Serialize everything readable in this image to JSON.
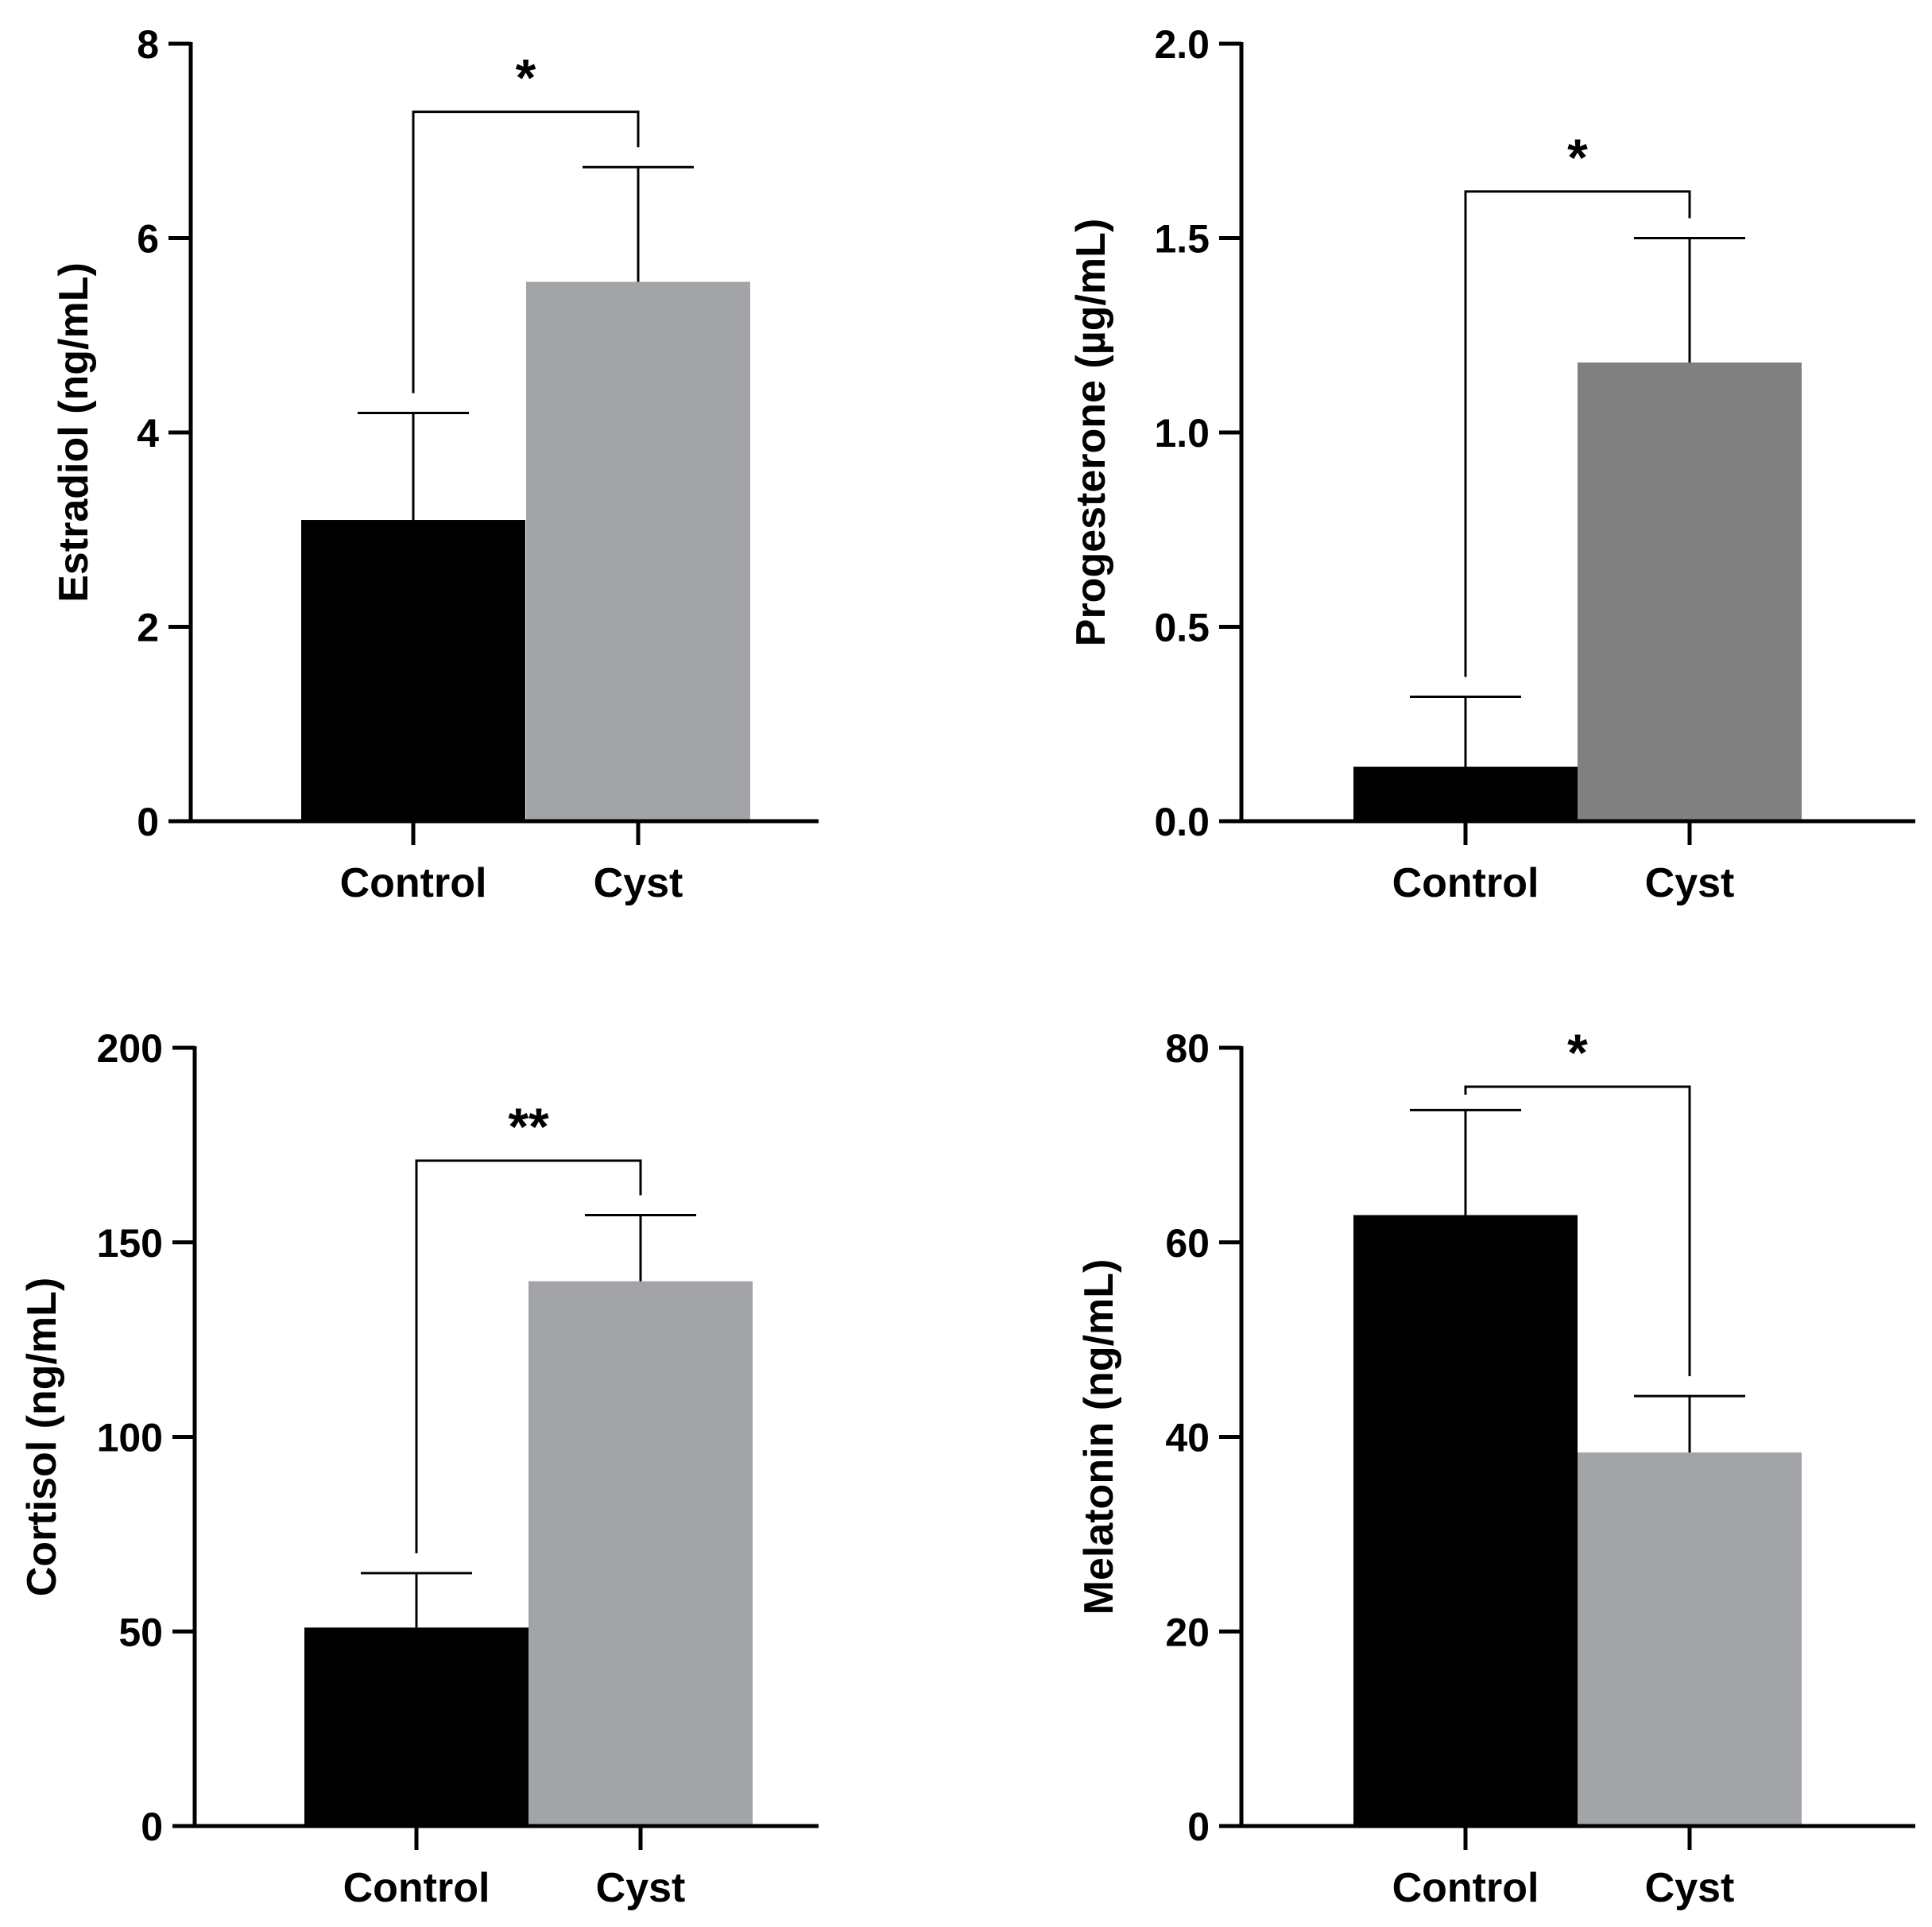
{
  "chart_data": [
    {
      "type": "bar",
      "title": "",
      "xlabel": "",
      "ylabel": "Estradiol (ng/mL)",
      "categories": [
        "Control",
        "Cyst"
      ],
      "values": [
        3.1,
        5.55
      ],
      "errors": [
        1.1,
        1.18
      ],
      "colors": [
        "#000000",
        "#a3a4a8"
      ],
      "ylim": [
        0,
        8
      ],
      "yticks": [
        0,
        2,
        4,
        6,
        8
      ],
      "ytick_labels": [
        "0",
        "2",
        "4",
        "6",
        "8"
      ],
      "significance": {
        "label": "*",
        "bracket_y": 7.3
      }
    },
    {
      "type": "bar",
      "title": "",
      "xlabel": "",
      "ylabel": "Progesterone (µg/mL)",
      "categories": [
        "Control",
        "Cyst"
      ],
      "values": [
        0.14,
        1.18
      ],
      "errors": [
        0.18,
        0.32
      ],
      "colors": [
        "#000000",
        "#808080"
      ],
      "ylim": [
        0,
        2.0
      ],
      "yticks": [
        0,
        0.5,
        1.0,
        1.5,
        2.0
      ],
      "ytick_labels": [
        "0.0",
        "0.5",
        "1.0",
        "1.5",
        "2.0"
      ],
      "significance": {
        "label": "*",
        "bracket_y": 1.62
      }
    },
    {
      "type": "bar",
      "title": "",
      "xlabel": "",
      "ylabel": "Cortisol (ng/mL)",
      "categories": [
        "Control",
        "Cyst"
      ],
      "values": [
        51,
        140
      ],
      "errors": [
        14,
        17
      ],
      "colors": [
        "#000000",
        "#a3a4a8"
      ],
      "ylim": [
        0,
        200
      ],
      "yticks": [
        0,
        50,
        100,
        150,
        200
      ],
      "ytick_labels": [
        "0",
        "50",
        "100",
        "150",
        "200"
      ],
      "significance": {
        "label": "**",
        "bracket_y": 171
      }
    },
    {
      "type": "bar",
      "title": "",
      "xlabel": "",
      "ylabel": "Melatonin (ng/mL)",
      "categories": [
        "Control",
        "Cyst"
      ],
      "values": [
        62.8,
        38.4
      ],
      "errors": [
        10.8,
        5.8
      ],
      "colors": [
        "#000000",
        "#a3a4a8"
      ],
      "ylim": [
        0,
        80
      ],
      "yticks": [
        0,
        20,
        40,
        60,
        80
      ],
      "ytick_labels": [
        "0",
        "20",
        "40",
        "60",
        "80"
      ],
      "significance": {
        "label": "*",
        "bracket_y": 76
      }
    }
  ]
}
